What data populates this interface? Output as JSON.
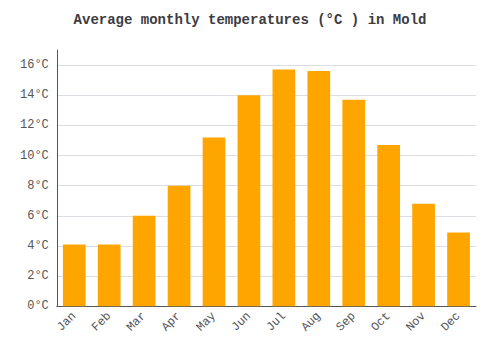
{
  "chart_data": {
    "type": "bar",
    "title": "Average monthly temperatures (°C ) in Mold",
    "categories": [
      "Jan",
      "Feb",
      "Mar",
      "Apr",
      "May",
      "Jun",
      "Jul",
      "Aug",
      "Sep",
      "Oct",
      "Nov",
      "Dec"
    ],
    "values": [
      4.1,
      4.1,
      6.0,
      8.0,
      11.2,
      14.0,
      15.7,
      15.6,
      13.7,
      10.7,
      6.8,
      4.9
    ],
    "color": "#FFA500",
    "ylim": [
      0,
      17
    ],
    "yticks": [
      {
        "value": 0,
        "label": "0°C"
      },
      {
        "value": 2,
        "label": "2°C"
      },
      {
        "value": 4,
        "label": "4°C"
      },
      {
        "value": 6,
        "label": "6°C"
      },
      {
        "value": 8,
        "label": "8°C"
      },
      {
        "value": 10,
        "label": "10°C"
      },
      {
        "value": 12,
        "label": "12°C"
      },
      {
        "value": 14,
        "label": "14°C"
      },
      {
        "value": 16,
        "label": "16°C"
      }
    ],
    "grid": true
  }
}
